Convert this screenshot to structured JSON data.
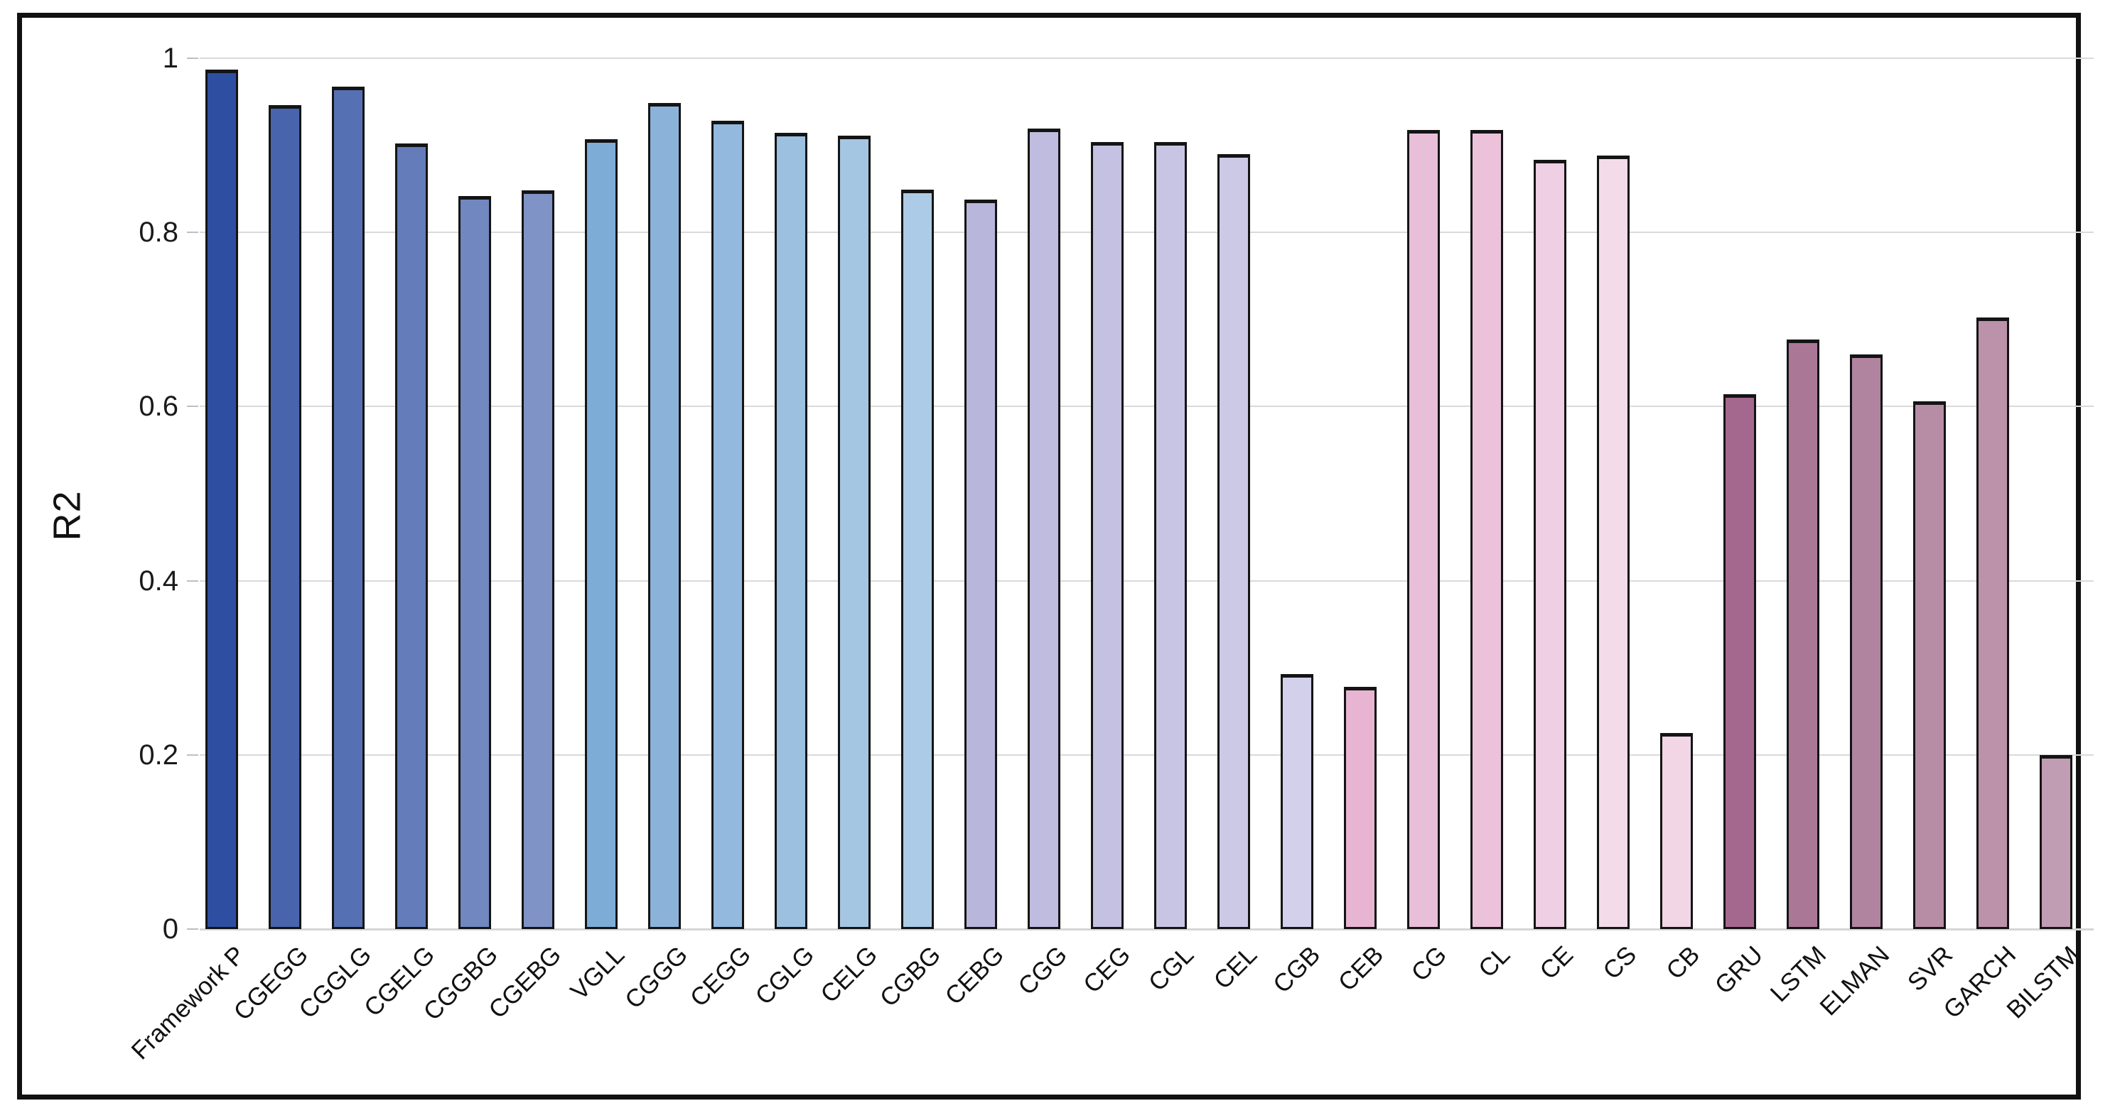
{
  "chart_data": {
    "type": "bar",
    "title": "",
    "xlabel": "",
    "ylabel": "R2",
    "ylim": [
      0,
      1
    ],
    "yticks": [
      0,
      0.2,
      0.4,
      0.6,
      0.8,
      1
    ],
    "grid": true,
    "legend": "none",
    "categories": [
      "Framework P",
      "CGEGG",
      "CGGLG",
      "CGELG",
      "CGGBG",
      "CGEBG",
      "VGLL",
      "CGGG",
      "CEGG",
      "CGLG",
      "CELG",
      "CGBG",
      "CEBG",
      "CGG",
      "CEG",
      "CGL",
      "CEL",
      "CGB",
      "CEB",
      "CG",
      "CL",
      "CE",
      "CS",
      "CB",
      "GRU",
      "LSTM",
      "ELMAN",
      "SVR",
      "GARCH",
      "BILSTM"
    ],
    "values": [
      0.987,
      0.946,
      0.967,
      0.902,
      0.842,
      0.848,
      0.907,
      0.949,
      0.928,
      0.914,
      0.911,
      0.849,
      0.838,
      0.919,
      0.904,
      0.904,
      0.89,
      0.293,
      0.278,
      0.918,
      0.918,
      0.883,
      0.888,
      0.225,
      0.614,
      0.677,
      0.66,
      0.606,
      0.702,
      0.2
    ],
    "bar_colors": [
      "#2e4ea1",
      "#4764ad",
      "#5571b4",
      "#647cba",
      "#7187bf",
      "#8093c6",
      "#7dadd6",
      "#8bb3da",
      "#93b9de",
      "#9bc0e0",
      "#a4c6e3",
      "#accbe6",
      "#b9b6db",
      "#bfbcdf",
      "#c4c1e2",
      "#c8c5e4",
      "#ccc9e6",
      "#d2d0ea",
      "#e7b4d2",
      "#e9bed8",
      "#ebc2da",
      "#efcfe3",
      "#f4dbe9",
      "#f2d6e5",
      "#a4688e",
      "#ab7797",
      "#b0849f",
      "#b78da6",
      "#bb92aa",
      "#c09db2"
    ],
    "bar_outline_color": "#141414",
    "gridline_color": "#d9d9d9",
    "frame_color": "#111111",
    "background_color": "#ffffff"
  }
}
